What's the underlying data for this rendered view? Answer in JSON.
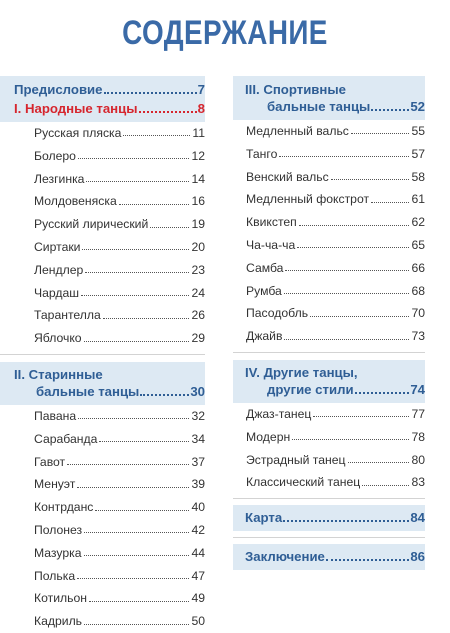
{
  "title": "СОДЕРЖАНИЕ",
  "left": {
    "preface": {
      "label": "Предисловие",
      "page": "7"
    },
    "folk": {
      "label": "I. Народные танцы",
      "page": "8",
      "items": [
        {
          "label": "Русская пляска",
          "page": "11"
        },
        {
          "label": "Болеро",
          "page": "12"
        },
        {
          "label": "Лезгинка",
          "page": "14"
        },
        {
          "label": "Молдовеняска",
          "page": "16"
        },
        {
          "label": "Русский лирический",
          "page": "19"
        },
        {
          "label": "Сиртаки",
          "page": "20"
        },
        {
          "label": "Лендлер",
          "page": "23"
        },
        {
          "label": "Чардаш",
          "page": "24"
        },
        {
          "label": "Тарантелла",
          "page": "26"
        },
        {
          "label": "Яблочко",
          "page": "29"
        }
      ]
    },
    "old": {
      "label_line1": "II. Старинные",
      "label_line2": "бальные танцы",
      "page": "30",
      "items": [
        {
          "label": "Павана",
          "page": "32"
        },
        {
          "label": "Сарабанда",
          "page": "34"
        },
        {
          "label": "Гавот",
          "page": "37"
        },
        {
          "label": "Менуэт",
          "page": "39"
        },
        {
          "label": "Контрданс",
          "page": "40"
        },
        {
          "label": "Полонез",
          "page": "42"
        },
        {
          "label": "Мазурка",
          "page": "44"
        },
        {
          "label": "Полька",
          "page": "47"
        },
        {
          "label": "Котильон",
          "page": "49"
        },
        {
          "label": "Кадриль",
          "page": "50"
        }
      ]
    }
  },
  "right": {
    "sport": {
      "label_line1": "III. Спортивные",
      "label_line2": "бальные танцы",
      "page": "52",
      "items": [
        {
          "label": "Медленный вальс",
          "page": "55"
        },
        {
          "label": "Танго",
          "page": "57"
        },
        {
          "label": "Венский вальс",
          "page": "58"
        },
        {
          "label": "Медленный фокстрот",
          "page": "61"
        },
        {
          "label": "Квикстеп",
          "page": "62"
        },
        {
          "label": "Ча-ча-ча",
          "page": "65"
        },
        {
          "label": "Самба",
          "page": "66"
        },
        {
          "label": "Румба",
          "page": "68"
        },
        {
          "label": "Пасодобль",
          "page": "70"
        },
        {
          "label": "Джайв",
          "page": "73"
        }
      ]
    },
    "other": {
      "label_line1": "IV. Другие танцы,",
      "label_line2": "другие стили",
      "page": "74",
      "items": [
        {
          "label": "Джаз-танец",
          "page": "77"
        },
        {
          "label": "Модерн",
          "page": "78"
        },
        {
          "label": "Эстрадный танец",
          "page": "80"
        },
        {
          "label": "Классический танец",
          "page": "83"
        }
      ]
    },
    "map": {
      "label": "Карта",
      "page": "84"
    },
    "conclusion": {
      "label": "Заключение",
      "page": "86"
    }
  }
}
